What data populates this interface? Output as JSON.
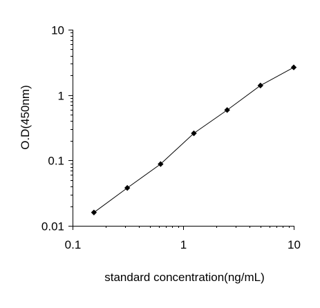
{
  "chart_data": {
    "type": "scatter",
    "x_scale": "log",
    "y_scale": "log",
    "xlim": [
      0.1,
      10
    ],
    "ylim": [
      0.01,
      10
    ],
    "x_ticks": [
      "0.1",
      "1",
      "10"
    ],
    "y_ticks": [
      "10",
      "1",
      "0.1",
      "0.01"
    ],
    "xlabel": "standard concentration(ng/mL)",
    "ylabel": "O.D(450nm)",
    "grid": false,
    "marker": "diamond",
    "connected": true,
    "series": [
      {
        "x": [
          0.156,
          0.3125,
          0.625,
          1.25,
          2.5,
          5,
          10
        ],
        "y": [
          0.016,
          0.038,
          0.088,
          0.26,
          0.59,
          1.4,
          2.65
        ]
      }
    ]
  }
}
